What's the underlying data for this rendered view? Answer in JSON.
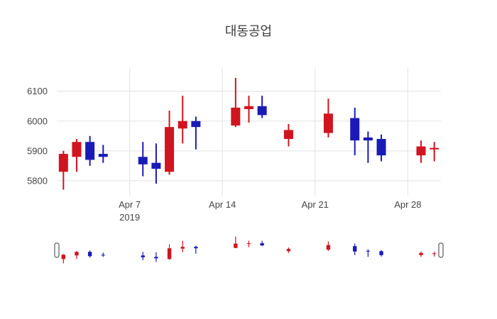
{
  "title": "대동공업",
  "colors": {
    "background": "#ffffff",
    "increasing": "#d01420",
    "decreasing": "#1a1ab8",
    "grid": "#e8e8e8",
    "text": "#444444",
    "handle_fill": "#ffffff",
    "handle_border": "#5a5a5a"
  },
  "y_axis": {
    "tick_labels": [
      "5800",
      "5900",
      "6000",
      "6100"
    ],
    "tick_values": [
      5800,
      5900,
      6000,
      6100
    ]
  },
  "x_axis": {
    "ticks": [
      {
        "label": "Apr 7",
        "sublabel": "2019",
        "day": 7
      },
      {
        "label": "Apr 14",
        "sublabel": "",
        "day": 14
      },
      {
        "label": "Apr 21",
        "sublabel": "",
        "day": 21
      },
      {
        "label": "Apr 28",
        "sublabel": "",
        "day": 28
      }
    ]
  },
  "chart_data": {
    "type": "candlestick",
    "title": "대동공업",
    "x": [
      "2019-04-02",
      "2019-04-03",
      "2019-04-04",
      "2019-04-05",
      "2019-04-08",
      "2019-04-09",
      "2019-04-10",
      "2019-04-11",
      "2019-04-12",
      "2019-04-15",
      "2019-04-16",
      "2019-04-17",
      "2019-04-19",
      "2019-04-22",
      "2019-04-24",
      "2019-04-25",
      "2019-04-26",
      "2019-04-29",
      "2019-04-30"
    ],
    "open": [
      5830,
      5880,
      5930,
      5890,
      5880,
      5860,
      5830,
      5975,
      6000,
      5985,
      6040,
      6050,
      5940,
      5960,
      6010,
      5945,
      5940,
      5885,
      5905
    ],
    "high": [
      5900,
      5940,
      5950,
      5920,
      5930,
      5925,
      6035,
      6085,
      6015,
      6145,
      6085,
      6085,
      5990,
      6075,
      6045,
      5965,
      5955,
      5935,
      5930
    ],
    "low": [
      5770,
      5830,
      5850,
      5860,
      5815,
      5790,
      5820,
      5925,
      5905,
      5980,
      5995,
      6010,
      5915,
      5945,
      5885,
      5860,
      5865,
      5860,
      5865
    ],
    "close": [
      5890,
      5930,
      5870,
      5880,
      5855,
      5840,
      5980,
      6000,
      5980,
      6045,
      6050,
      6020,
      5970,
      6025,
      5935,
      5935,
      5885,
      5915,
      5910
    ],
    "xlabel": "",
    "ylabel": "",
    "ylim": [
      5750,
      6180
    ],
    "x_range_days": [
      1.5,
      30.5
    ],
    "grid": true,
    "legend": false,
    "rangeslider": {
      "enabled": true,
      "value_range": [
        5765,
        6150
      ]
    }
  }
}
